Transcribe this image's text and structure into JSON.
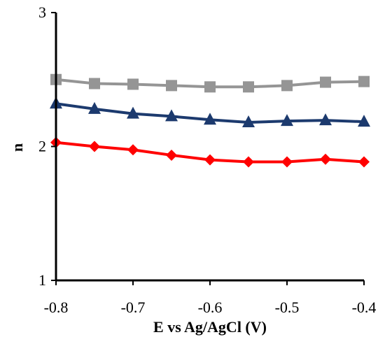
{
  "chart_data": {
    "type": "line",
    "title": "",
    "xlabel": "E vs Ag/AgCl (V)",
    "ylabel": "n",
    "xlim": [
      -0.8,
      -0.4
    ],
    "ylim": [
      1,
      3
    ],
    "x_ticks": [
      "-0.8",
      "-0.7",
      "-0.6",
      "-0.5",
      "-0.4"
    ],
    "y_ticks": [
      "1",
      "2",
      "3"
    ],
    "x": [
      -0.8,
      -0.75,
      -0.7,
      -0.65,
      -0.6,
      -0.55,
      -0.5,
      -0.45,
      -0.4
    ],
    "grid": false,
    "legend": "none",
    "series": [
      {
        "marker": "square",
        "color": "#959595",
        "values": [
          2.5,
          2.47,
          2.465,
          2.455,
          2.445,
          2.445,
          2.455,
          2.48,
          2.485
        ]
      },
      {
        "marker": "triangle",
        "color": "#1c3a6e",
        "values": [
          2.32,
          2.28,
          2.245,
          2.225,
          2.2,
          2.18,
          2.19,
          2.195,
          2.185
        ]
      },
      {
        "marker": "diamond",
        "color": "#ff0000",
        "values": [
          2.03,
          2.0,
          1.975,
          1.935,
          1.9,
          1.885,
          1.885,
          1.905,
          1.885
        ]
      }
    ]
  }
}
